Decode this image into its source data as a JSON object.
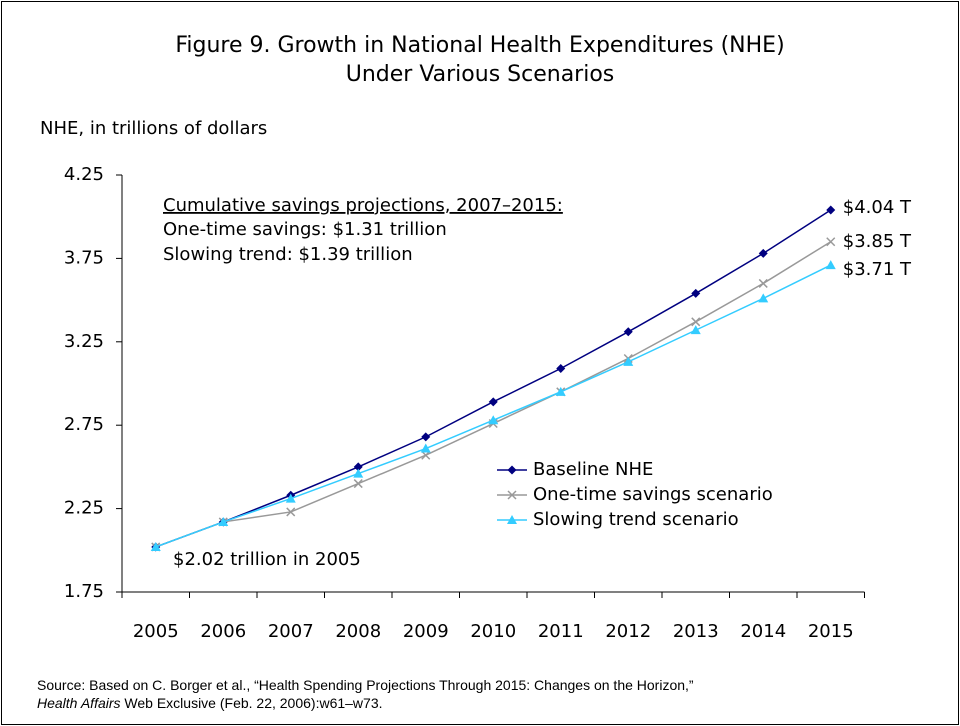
{
  "chart_data": {
    "type": "line",
    "title": [
      "Figure 9. Growth in National Health Expenditures (NHE)",
      "Under Various Scenarios"
    ],
    "y_label": "NHE, in trillions of dollars",
    "categories": [
      "2005",
      "2006",
      "2007",
      "2008",
      "2009",
      "2010",
      "2011",
      "2012",
      "2013",
      "2014",
      "2015"
    ],
    "series": [
      {
        "name": "Baseline NHE",
        "color": "#000080",
        "marker": "diamond",
        "end_label": "$4.04 T",
        "values": [
          2.02,
          2.17,
          2.33,
          2.5,
          2.68,
          2.89,
          3.09,
          3.31,
          3.54,
          3.78,
          4.04
        ]
      },
      {
        "name": "One-time savings scenario",
        "color": "#999999",
        "marker": "x",
        "end_label": "$3.85 T",
        "values": [
          2.02,
          2.17,
          2.23,
          2.4,
          2.57,
          2.76,
          2.95,
          3.15,
          3.37,
          3.6,
          3.85
        ]
      },
      {
        "name": "Slowing trend scenario",
        "color": "#33ccff",
        "marker": "triangle",
        "end_label": "$3.71 T",
        "values": [
          2.02,
          2.17,
          2.31,
          2.46,
          2.61,
          2.78,
          2.95,
          3.13,
          3.32,
          3.51,
          3.71
        ]
      }
    ],
    "ylim": [
      1.75,
      4.25
    ],
    "yticks": [
      1.75,
      2.25,
      2.75,
      3.25,
      3.75,
      4.25
    ],
    "annotations": [
      "Cumulative savings projections, 2007–2015:",
      "One-time savings: $1.31 trillion",
      "Slowing trend: $1.39 trillion",
      "$2.02 trillion in 2005"
    ],
    "source": {
      "line1": "Source: Based on C. Borger et al., “Health Spending Projections Through 2015: Changes on the Horizon,”",
      "journal": "Health Affairs",
      "line2": " Web Exclusive (Feb. 22, 2006):w61–w73."
    }
  }
}
